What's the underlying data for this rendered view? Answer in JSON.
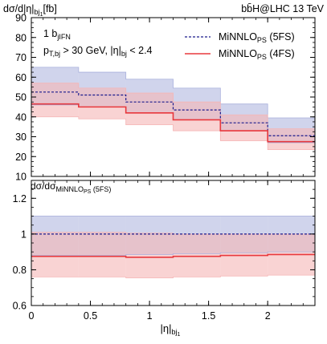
{
  "chart_data": [
    {
      "type": "line",
      "subtype": "step-histogram-with-uncertainty-bands",
      "ylabel": "dσ/d|η|",
      "ylabel_sub": "bj",
      "ylabel_subsub": "1",
      "ylabel_unit": "[fb]",
      "process_label": "bb̄H@LHC 13 TeV",
      "cut_line1": "1 b",
      "cut_line1_sub": "jIFN",
      "cut_line2_a": "p",
      "cut_line2_sub": "T,bj",
      "cut_line2_b": " > 30 GeV, |η|",
      "cut_line2_sub2": "bj",
      "cut_line2_c": " < 2.4",
      "legend_position": "top-right",
      "bin_edges": [
        0,
        0.4,
        0.8,
        1.2,
        1.6,
        2.0,
        2.4
      ],
      "xlim": [
        0,
        2.4
      ],
      "ylim": [
        10,
        90
      ],
      "yticks": [
        10,
        20,
        30,
        40,
        50,
        60,
        70,
        80,
        90
      ],
      "series": [
        {
          "name_main": "MiNNLO",
          "name_sub": "PS",
          "name_suffix": " (5FS)",
          "style": "dashed",
          "color": "#1a1a8c",
          "band_color": "#a9b0dc",
          "values": [
            52.5,
            51.0,
            47.5,
            43.5,
            37.0,
            30.5
          ],
          "band_low": [
            46.0,
            45.0,
            42.0,
            38.5,
            33.0,
            27.0
          ],
          "band_high": [
            65.0,
            62.5,
            59.0,
            54.5,
            46.5,
            39.5
          ]
        },
        {
          "name_main": "MiNNLO",
          "name_sub": "PS",
          "name_suffix": " (4FS)",
          "style": "solid",
          "color": "#e8383d",
          "band_color": "#f5b5b5",
          "values": [
            46.5,
            45.0,
            42.0,
            38.5,
            33.0,
            27.5
          ],
          "band_low": [
            40.0,
            39.0,
            36.0,
            33.0,
            28.0,
            23.5
          ],
          "band_high": [
            57.0,
            54.5,
            52.0,
            47.5,
            41.0,
            34.0
          ]
        }
      ]
    },
    {
      "type": "line",
      "subtype": "ratio-panel",
      "ylabel": "dσ/dσ",
      "ylabel_sub": "MiNNLO",
      "ylabel_subsub": "PS",
      "ylabel_suffix": " (5FS)",
      "xlabel": "|η|",
      "xlabel_sub": "bj",
      "xlabel_subsub": "1",
      "bin_edges": [
        0,
        0.4,
        0.8,
        1.2,
        1.6,
        2.0,
        2.4
      ],
      "xlim": [
        0,
        2.4
      ],
      "xticks": [
        0,
        0.5,
        1,
        1.5,
        2
      ],
      "ylim": [
        0.6,
        1.3
      ],
      "yticks": [
        0.6,
        0.8,
        1,
        1.2
      ],
      "series": [
        {
          "name": "MiNNLO_PS (5FS)",
          "style": "dashed",
          "color": "#1a1a8c",
          "band_color": "#a9b0dc",
          "values": [
            1.0,
            1.0,
            1.0,
            1.0,
            1.0,
            1.0
          ],
          "band_low": [
            0.88,
            0.88,
            0.885,
            0.89,
            0.895,
            0.9
          ],
          "band_high": [
            1.1,
            1.1,
            1.1,
            1.1,
            1.1,
            1.1
          ]
        },
        {
          "name": "MiNNLO_PS (4FS)",
          "style": "solid",
          "color": "#e8383d",
          "band_color": "#f5b5b5",
          "values": [
            0.875,
            0.875,
            0.87,
            0.875,
            0.88,
            0.885
          ],
          "band_low": [
            0.76,
            0.76,
            0.755,
            0.76,
            0.765,
            0.77
          ],
          "band_high": [
            1.01,
            1.01,
            1.005,
            1.0,
            1.0,
            1.0
          ]
        }
      ]
    }
  ]
}
